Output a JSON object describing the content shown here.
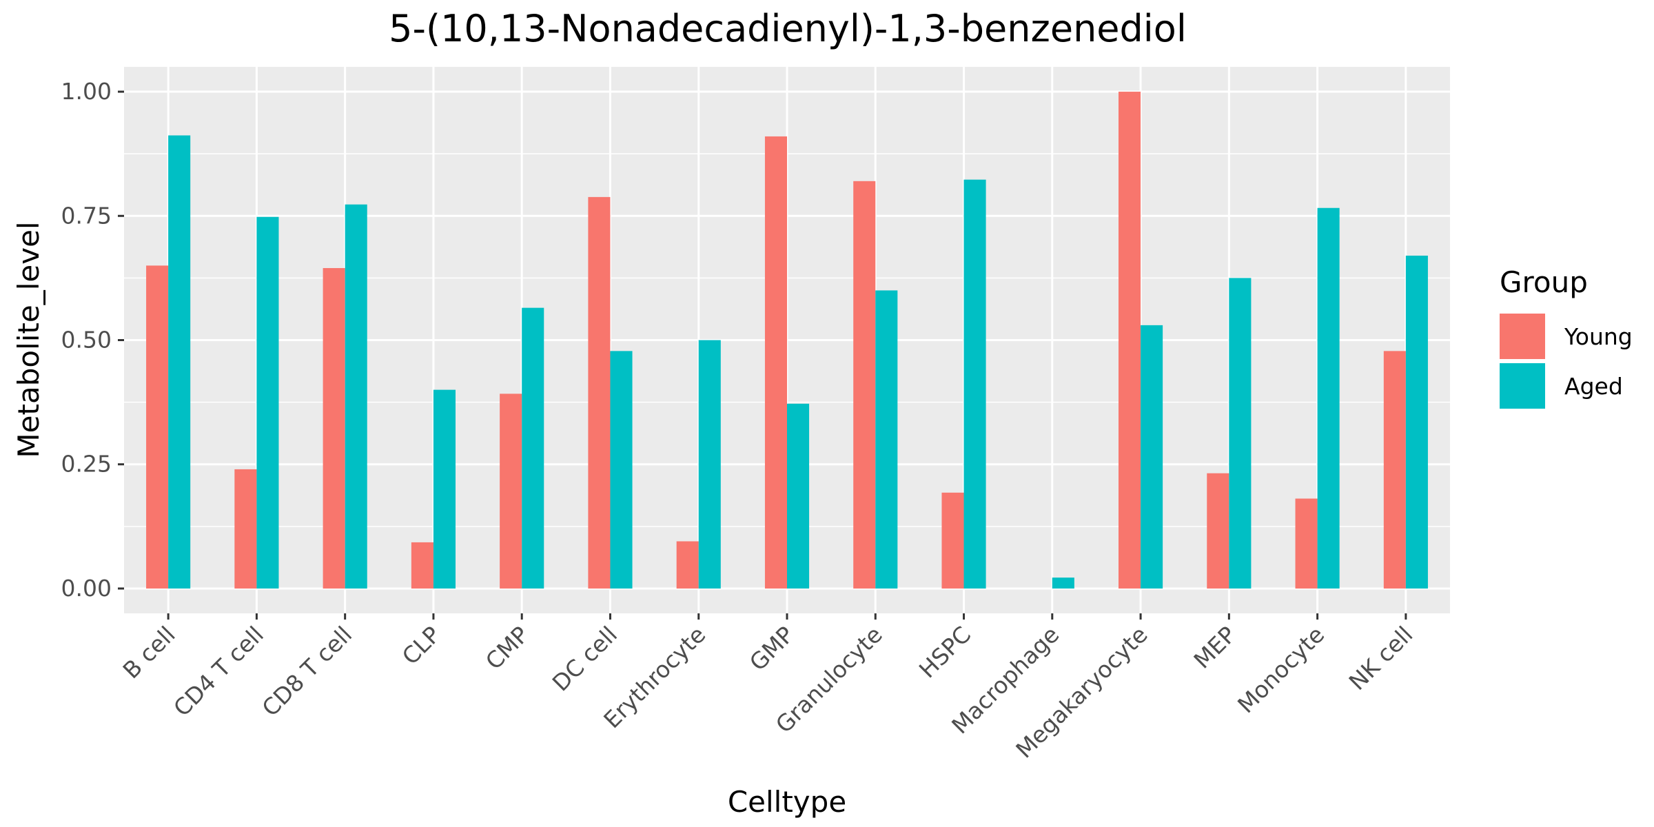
{
  "chart_data": {
    "type": "bar",
    "title": "5-(10,13-Nonadecadienyl)-1,3-benzenediol",
    "xlabel": "Celltype",
    "ylabel": "Metabolite_level",
    "ylim": [
      -0.05,
      1.05
    ],
    "yticks": [
      0.0,
      0.25,
      0.5,
      0.75,
      1.0
    ],
    "ytick_labels": [
      "0.00",
      "0.25",
      "0.50",
      "0.75",
      "1.00"
    ],
    "grid": true,
    "legend_position": "right",
    "legend_title": "Group",
    "categories": [
      "B cell",
      "CD4 T cell",
      "CD8 T cell",
      "CLP",
      "CMP",
      "DC cell",
      "Erythrocyte",
      "GMP",
      "Granulocyte",
      "HSPC",
      "Macrophage",
      "Megakaryocyte",
      "MEP",
      "Monocyte",
      "NK cell"
    ],
    "series": [
      {
        "name": "Young",
        "color": "#F8766D",
        "values": [
          0.65,
          0.24,
          0.645,
          0.093,
          0.392,
          0.788,
          0.095,
          0.91,
          0.82,
          0.193,
          0.0,
          1.0,
          0.232,
          0.181,
          0.478
        ]
      },
      {
        "name": "Aged",
        "color": "#00BFC4",
        "values": [
          0.912,
          0.748,
          0.773,
          0.4,
          0.565,
          0.478,
          0.5,
          0.372,
          0.6,
          0.823,
          0.022,
          0.53,
          0.625,
          0.766,
          0.67
        ]
      }
    ]
  },
  "colors": {
    "panel_background": "#EBEBEB",
    "grid_major": "#FFFFFF",
    "axis_tick": "#333333",
    "tick_label": "#4D4D4D"
  }
}
